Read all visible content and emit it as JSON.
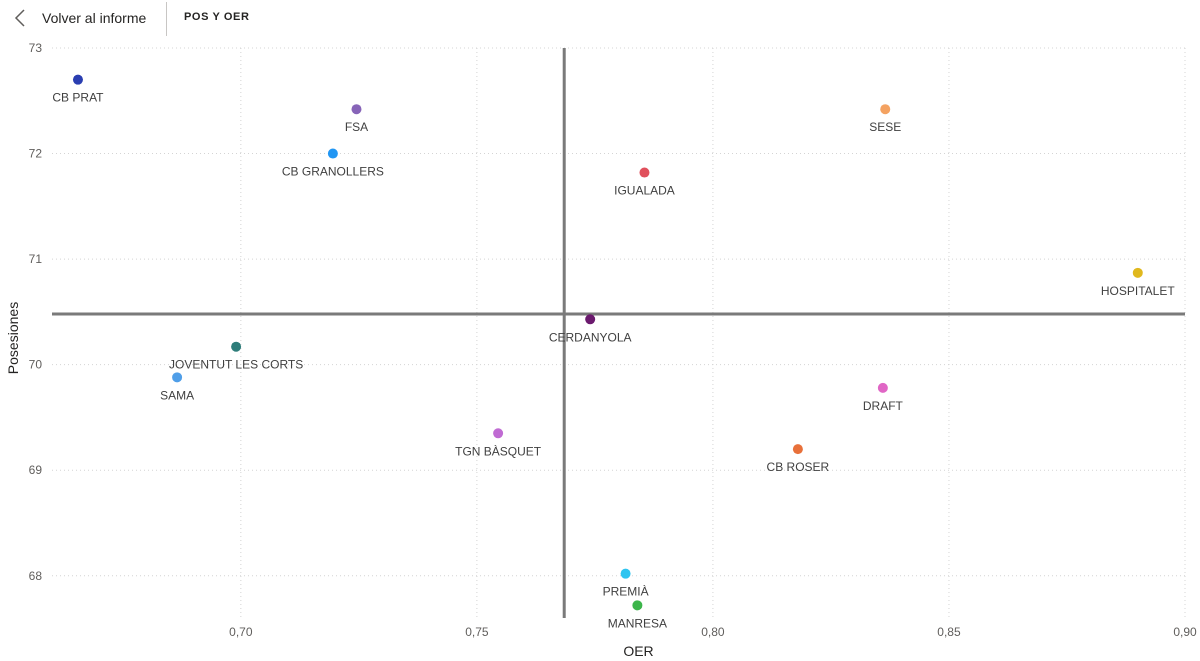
{
  "header": {
    "back_label": "Volver al informe",
    "page_title": "POS Y OER"
  },
  "chart_data": {
    "type": "scatter",
    "xlabel": "OER",
    "ylabel": "Posesiones",
    "xlim": [
      0.66,
      0.9
    ],
    "ylim": [
      67.6,
      73.0
    ],
    "x_ticks": [
      0.7,
      0.75,
      0.8,
      0.85,
      0.9
    ],
    "x_tick_labels": [
      "0,70",
      "0,75",
      "0,80",
      "0,85",
      "0,90"
    ],
    "y_ticks": [
      68,
      69,
      70,
      71,
      72,
      73
    ],
    "y_tick_labels": [
      "68",
      "69",
      "70",
      "71",
      "72",
      "73"
    ],
    "grid": true,
    "reference_lines": {
      "x": 0.7685,
      "y": 70.48
    },
    "points": [
      {
        "label": "CB PRAT",
        "x": 0.6655,
        "y": 72.7,
        "color": "#2a3eb1"
      },
      {
        "label": "FSA",
        "x": 0.7245,
        "y": 72.42,
        "color": "#8764b8"
      },
      {
        "label": "CB GRANOLLERS",
        "x": 0.7195,
        "y": 72.0,
        "color": "#2196f3"
      },
      {
        "label": "SESE",
        "x": 0.8365,
        "y": 72.42,
        "color": "#f4a261"
      },
      {
        "label": "IGUALADA",
        "x": 0.7855,
        "y": 71.82,
        "color": "#e0505c"
      },
      {
        "label": "HOSPITALET",
        "x": 0.89,
        "y": 70.87,
        "color": "#e0b81d"
      },
      {
        "label": "CERDANYOLA",
        "x": 0.774,
        "y": 70.43,
        "color": "#6b1a6e"
      },
      {
        "label": "JOVENTUT LES CORTS",
        "x": 0.699,
        "y": 70.17,
        "color": "#2e7d7a"
      },
      {
        "label": "SAMA",
        "x": 0.6865,
        "y": 69.88,
        "color": "#4f9ee8"
      },
      {
        "label": "DRAFT",
        "x": 0.836,
        "y": 69.78,
        "color": "#e066c5"
      },
      {
        "label": "TGN BÀSQUET",
        "x": 0.7545,
        "y": 69.35,
        "color": "#c06bd3"
      },
      {
        "label": "CB ROSER",
        "x": 0.818,
        "y": 69.2,
        "color": "#e8703a"
      },
      {
        "label": "PREMIÀ",
        "x": 0.7815,
        "y": 68.02,
        "color": "#2ec4f0"
      },
      {
        "label": "MANRESA",
        "x": 0.784,
        "y": 67.72,
        "color": "#3cb54a"
      }
    ]
  }
}
